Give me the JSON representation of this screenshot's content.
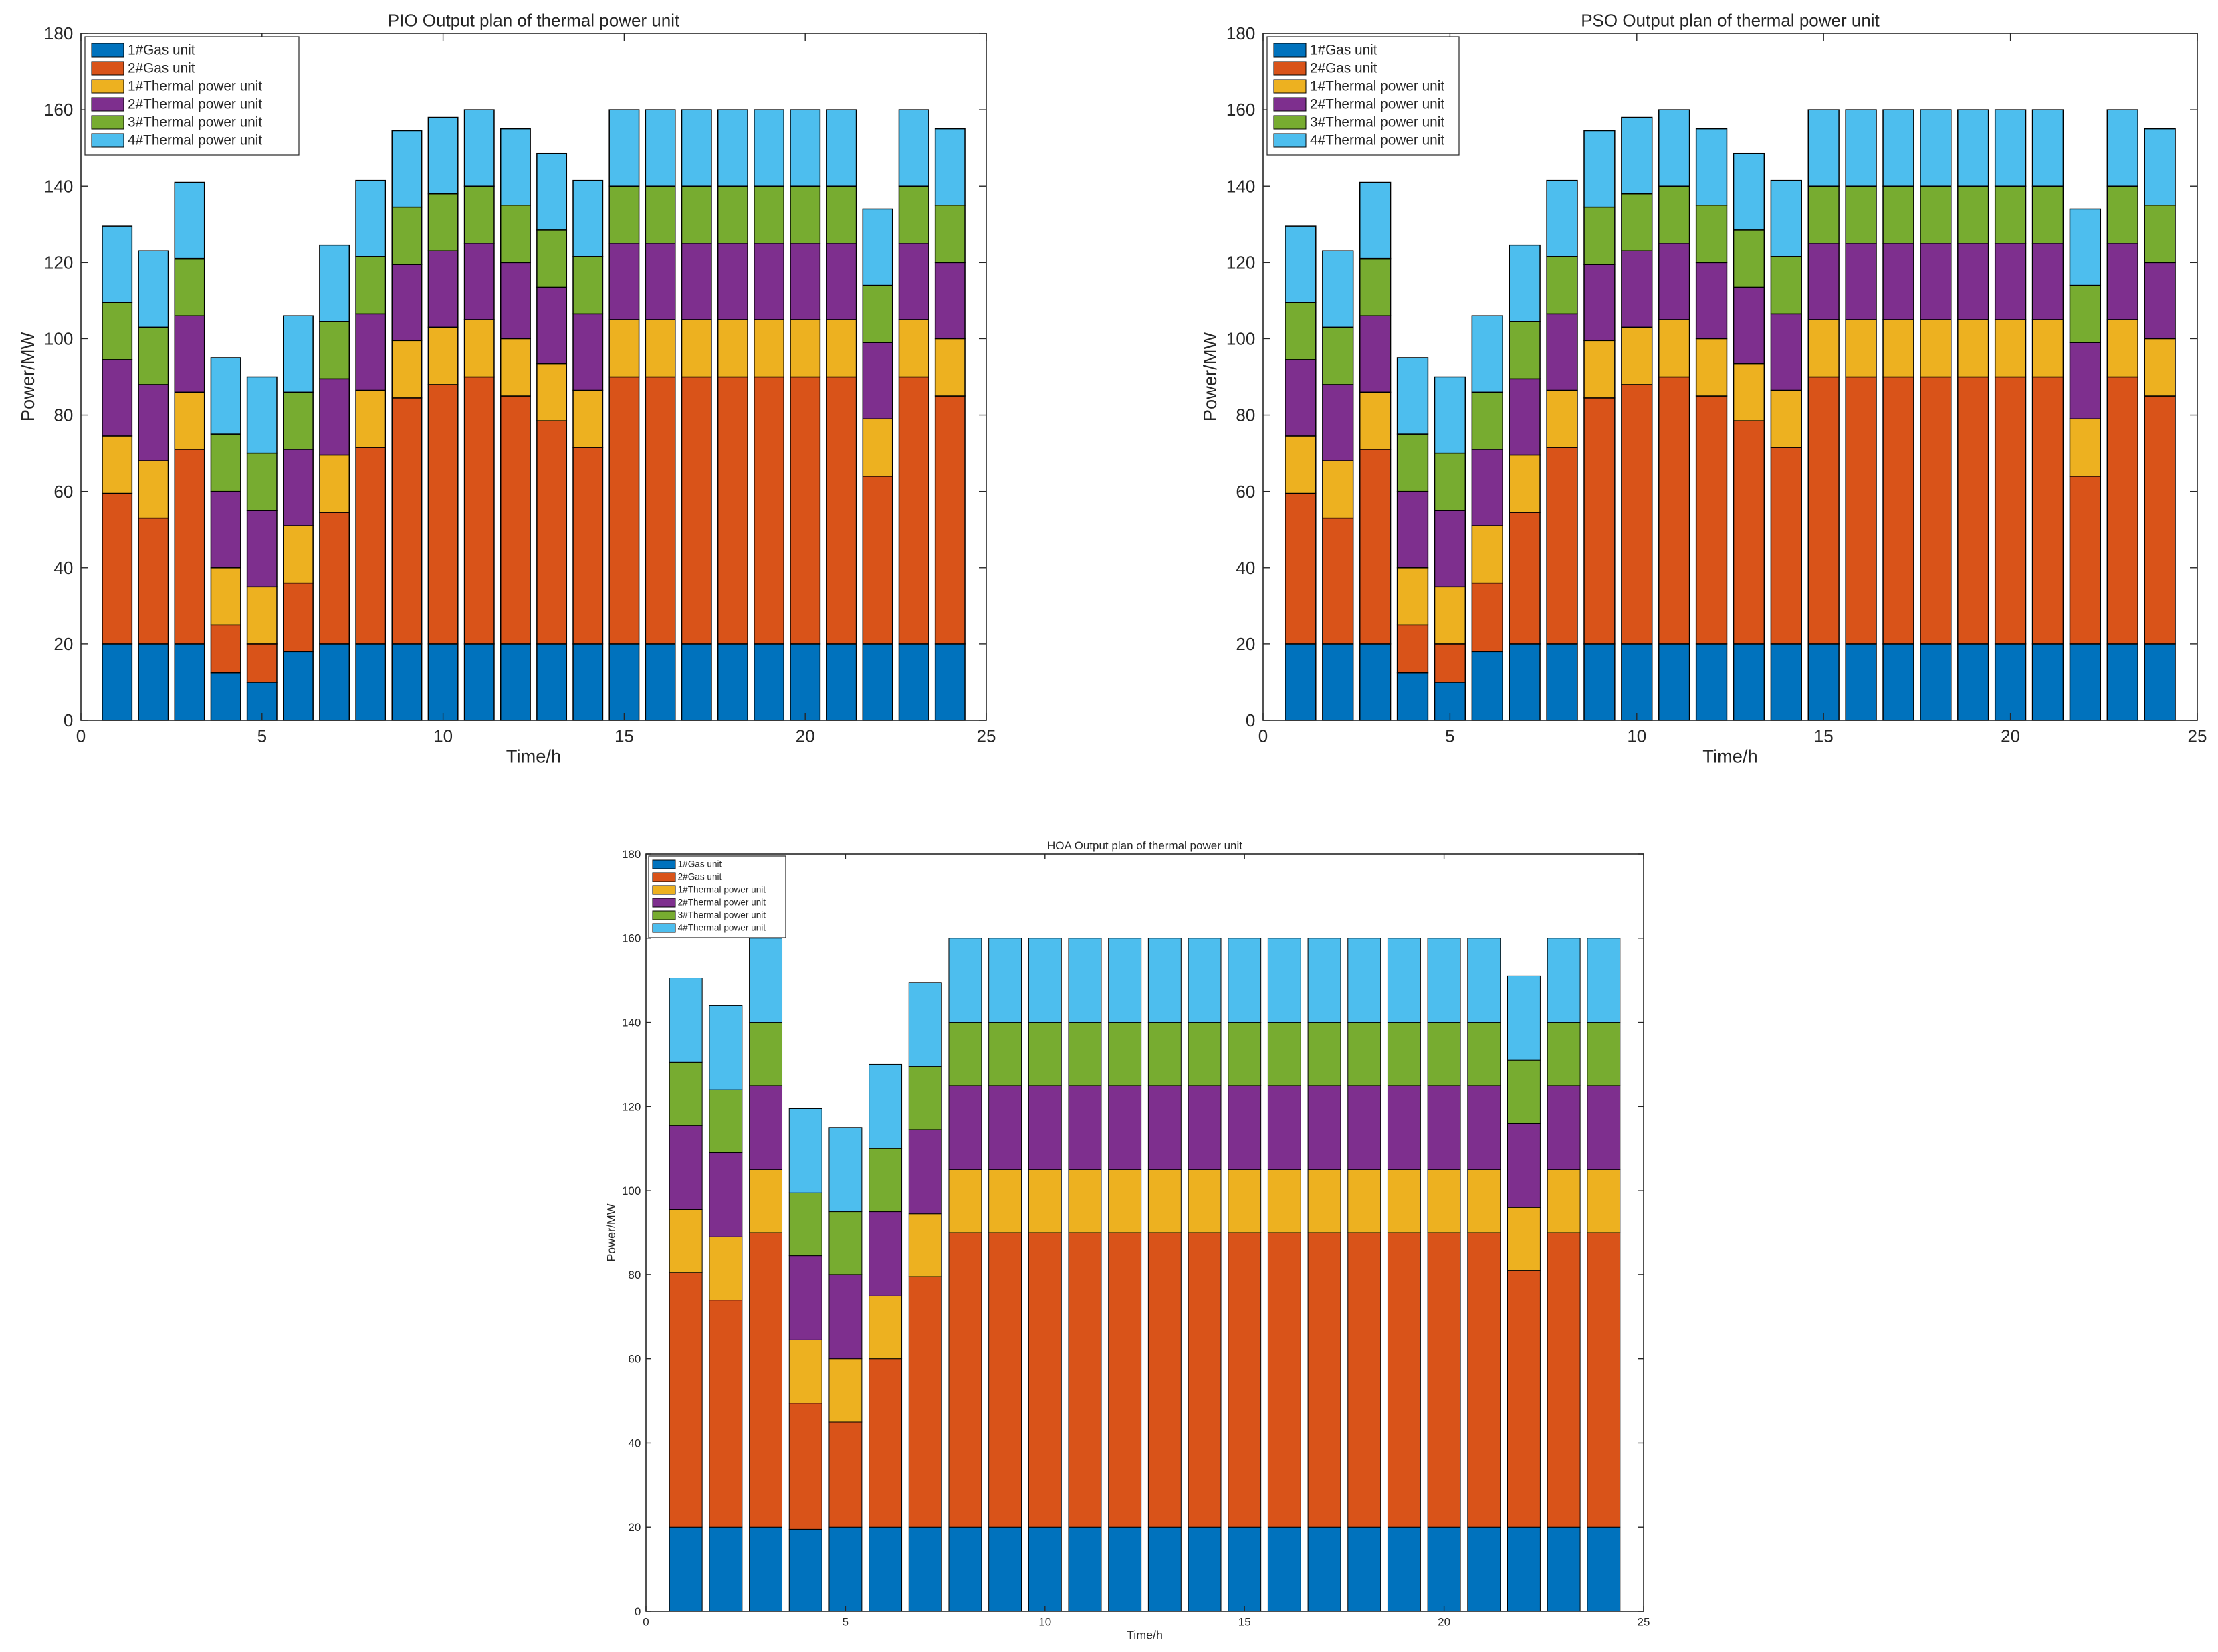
{
  "colors": {
    "1#Gas unit": "#0072BD",
    "2#Gas unit": "#D95319",
    "1#Thermal power unit": "#EDB120",
    "2#Thermal power unit": "#7E2F8E",
    "3#Thermal power unit": "#77AC30",
    "4#Thermal power unit": "#4DBEEE",
    "axis": "#262626",
    "bar_edge": "#000000"
  },
  "chart_data": [
    {
      "type": "bar",
      "stacked": true,
      "title": "PIO Output plan of thermal power unit",
      "xlabel": "Time/h",
      "ylabel": "Power/MW",
      "xlim": [
        0,
        25
      ],
      "ylim": [
        0,
        180
      ],
      "xticks": [
        0,
        5,
        10,
        15,
        20,
        25
      ],
      "yticks": [
        0,
        20,
        40,
        60,
        80,
        100,
        120,
        140,
        160,
        180
      ],
      "x": [
        1,
        2,
        3,
        4,
        5,
        6,
        7,
        8,
        9,
        10,
        11,
        12,
        13,
        14,
        15,
        16,
        17,
        18,
        19,
        20,
        21,
        22,
        23,
        24
      ],
      "legend_position": "top-left",
      "series": [
        {
          "name": "1#Gas unit",
          "values": [
            20,
            20,
            20,
            12.5,
            10,
            18,
            20,
            20,
            20,
            20,
            20,
            20,
            20,
            20,
            20,
            20,
            20,
            20,
            20,
            20,
            20,
            20,
            20,
            20
          ]
        },
        {
          "name": "2#Gas unit",
          "values": [
            39.5,
            33,
            51,
            12.5,
            10,
            18,
            34.5,
            51.5,
            64.5,
            68,
            70,
            65,
            58.5,
            51.5,
            70,
            70,
            70,
            70,
            70,
            70,
            70,
            44,
            70,
            65
          ]
        },
        {
          "name": "1#Thermal power unit",
          "values": [
            15,
            15,
            15,
            15,
            15,
            15,
            15,
            15,
            15,
            15,
            15,
            15,
            15,
            15,
            15,
            15,
            15,
            15,
            15,
            15,
            15,
            15,
            15,
            15
          ]
        },
        {
          "name": "2#Thermal power unit",
          "values": [
            20,
            20,
            20,
            20,
            20,
            20,
            20,
            20,
            20,
            20,
            20,
            20,
            20,
            20,
            20,
            20,
            20,
            20,
            20,
            20,
            20,
            20,
            20,
            20
          ]
        },
        {
          "name": "3#Thermal power unit",
          "values": [
            15,
            15,
            15,
            15,
            15,
            15,
            15,
            15,
            15,
            15,
            15,
            15,
            15,
            15,
            15,
            15,
            15,
            15,
            15,
            15,
            15,
            15,
            15,
            15
          ]
        },
        {
          "name": "4#Thermal power unit",
          "values": [
            20,
            20,
            20,
            20,
            20,
            20,
            20,
            20,
            20,
            20,
            20,
            20,
            20,
            20,
            20,
            20,
            20,
            20,
            20,
            20,
            20,
            20,
            20,
            20
          ]
        }
      ]
    },
    {
      "type": "bar",
      "stacked": true,
      "title": "PSO Output plan of thermal power unit",
      "xlabel": "Time/h",
      "ylabel": "Power/MW",
      "xlim": [
        0,
        25
      ],
      "ylim": [
        0,
        180
      ],
      "xticks": [
        0,
        5,
        10,
        15,
        20,
        25
      ],
      "yticks": [
        0,
        20,
        40,
        60,
        80,
        100,
        120,
        140,
        160,
        180
      ],
      "x": [
        1,
        2,
        3,
        4,
        5,
        6,
        7,
        8,
        9,
        10,
        11,
        12,
        13,
        14,
        15,
        16,
        17,
        18,
        19,
        20,
        21,
        22,
        23,
        24
      ],
      "legend_position": "top-left",
      "series": [
        {
          "name": "1#Gas unit",
          "values": [
            20,
            20,
            20,
            12.5,
            10,
            18,
            20,
            20,
            20,
            20,
            20,
            20,
            20,
            20,
            20,
            20,
            20,
            20,
            20,
            20,
            20,
            20,
            20,
            20
          ]
        },
        {
          "name": "2#Gas unit",
          "values": [
            39.5,
            33,
            51,
            12.5,
            10,
            18,
            34.5,
            51.5,
            64.5,
            68,
            70,
            65,
            58.5,
            51.5,
            70,
            70,
            70,
            70,
            70,
            70,
            70,
            44,
            70,
            65
          ]
        },
        {
          "name": "1#Thermal power unit",
          "values": [
            15,
            15,
            15,
            15,
            15,
            15,
            15,
            15,
            15,
            15,
            15,
            15,
            15,
            15,
            15,
            15,
            15,
            15,
            15,
            15,
            15,
            15,
            15,
            15
          ]
        },
        {
          "name": "2#Thermal power unit",
          "values": [
            20,
            20,
            20,
            20,
            20,
            20,
            20,
            20,
            20,
            20,
            20,
            20,
            20,
            20,
            20,
            20,
            20,
            20,
            20,
            20,
            20,
            20,
            20,
            20
          ]
        },
        {
          "name": "3#Thermal power unit",
          "values": [
            15,
            15,
            15,
            15,
            15,
            15,
            15,
            15,
            15,
            15,
            15,
            15,
            15,
            15,
            15,
            15,
            15,
            15,
            15,
            15,
            15,
            15,
            15,
            15
          ]
        },
        {
          "name": "4#Thermal power unit",
          "values": [
            20,
            20,
            20,
            20,
            20,
            20,
            20,
            20,
            20,
            20,
            20,
            20,
            20,
            20,
            20,
            20,
            20,
            20,
            20,
            20,
            20,
            20,
            20,
            20
          ]
        }
      ]
    },
    {
      "type": "bar",
      "stacked": true,
      "title": "HOA Output plan of thermal power unit",
      "xlabel": "Time/h",
      "ylabel": "Power/MW",
      "xlim": [
        0,
        25
      ],
      "ylim": [
        0,
        180
      ],
      "xticks": [
        0,
        5,
        10,
        15,
        20,
        25
      ],
      "yticks": [
        0,
        20,
        40,
        60,
        80,
        100,
        120,
        140,
        160,
        180
      ],
      "x": [
        1,
        2,
        3,
        4,
        5,
        6,
        7,
        8,
        9,
        10,
        11,
        12,
        13,
        14,
        15,
        16,
        17,
        18,
        19,
        20,
        21,
        22,
        23,
        24
      ],
      "legend_position": "top-left",
      "series": [
        {
          "name": "1#Gas unit",
          "values": [
            20,
            20,
            20,
            19.5,
            20,
            20,
            20,
            20,
            20,
            20,
            20,
            20,
            20,
            20,
            20,
            20,
            20,
            20,
            20,
            20,
            20,
            20,
            20,
            20
          ]
        },
        {
          "name": "2#Gas unit",
          "values": [
            60.5,
            54,
            70,
            30,
            25,
            40,
            59.5,
            70,
            70,
            70,
            70,
            70,
            70,
            70,
            70,
            70,
            70,
            70,
            70,
            70,
            70,
            61,
            70,
            70
          ]
        },
        {
          "name": "1#Thermal power unit",
          "values": [
            15,
            15,
            15,
            15,
            15,
            15,
            15,
            15,
            15,
            15,
            15,
            15,
            15,
            15,
            15,
            15,
            15,
            15,
            15,
            15,
            15,
            15,
            15,
            15
          ]
        },
        {
          "name": "2#Thermal power unit",
          "values": [
            20,
            20,
            20,
            20,
            20,
            20,
            20,
            20,
            20,
            20,
            20,
            20,
            20,
            20,
            20,
            20,
            20,
            20,
            20,
            20,
            20,
            20,
            20,
            20
          ]
        },
        {
          "name": "3#Thermal power unit",
          "values": [
            15,
            15,
            15,
            15,
            15,
            15,
            15,
            15,
            15,
            15,
            15,
            15,
            15,
            15,
            15,
            15,
            15,
            15,
            15,
            15,
            15,
            15,
            15,
            15
          ]
        },
        {
          "name": "4#Thermal power unit",
          "values": [
            20,
            20,
            20,
            20,
            20,
            20,
            20,
            20,
            20,
            20,
            20,
            20,
            20,
            20,
            20,
            20,
            20,
            20,
            20,
            20,
            20,
            20,
            20,
            20
          ]
        }
      ]
    }
  ]
}
